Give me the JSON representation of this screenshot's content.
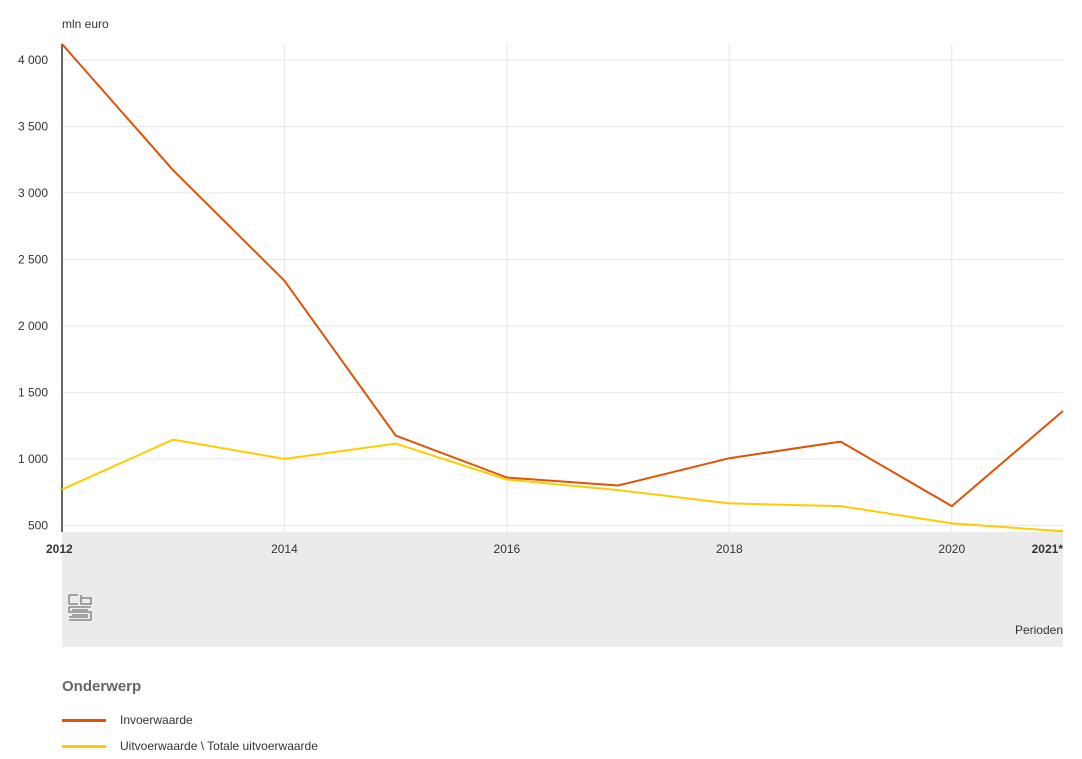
{
  "chart_data": {
    "type": "line",
    "ylabel": "mln euro",
    "xlabel": "Perioden",
    "x": [
      "2012",
      "2013",
      "2014",
      "2015",
      "2016",
      "2017",
      "2018",
      "2019",
      "2020",
      "2021*"
    ],
    "x_tick_labels": [
      "2012",
      "2014",
      "2016",
      "2018",
      "2020",
      "2021*"
    ],
    "y_ticks": [
      500,
      1000,
      1500,
      2000,
      2500,
      3000,
      3500,
      4000
    ],
    "y_tick_labels": [
      "500",
      "1 000",
      "1 500",
      "2 000",
      "2 500",
      "3 000",
      "3 500",
      "4 000"
    ],
    "ylim": [
      450,
      4120
    ],
    "grid": true,
    "legend_placement": "bottom-left",
    "series": [
      {
        "name": "Invoerwaarde",
        "color": "#e05206",
        "values": [
          4120,
          3170,
          2340,
          1175,
          860,
          800,
          1005,
          1130,
          645,
          1360
        ]
      },
      {
        "name": "Uitvoerwaarde \\ Totale uitvoerwaarde",
        "color": "#ffcc00",
        "values": [
          770,
          1145,
          1000,
          1115,
          845,
          765,
          665,
          645,
          515,
          455
        ]
      }
    ]
  },
  "legend": {
    "title": "Onderwerp",
    "items": [
      {
        "label": "Invoerwaarde",
        "color": "#e05206"
      },
      {
        "label": "Uitvoerwaarde \\ Totale uitvoerwaarde",
        "color": "#ffcc00"
      }
    ]
  },
  "branding": {
    "logo": "cbs-logo-icon"
  }
}
